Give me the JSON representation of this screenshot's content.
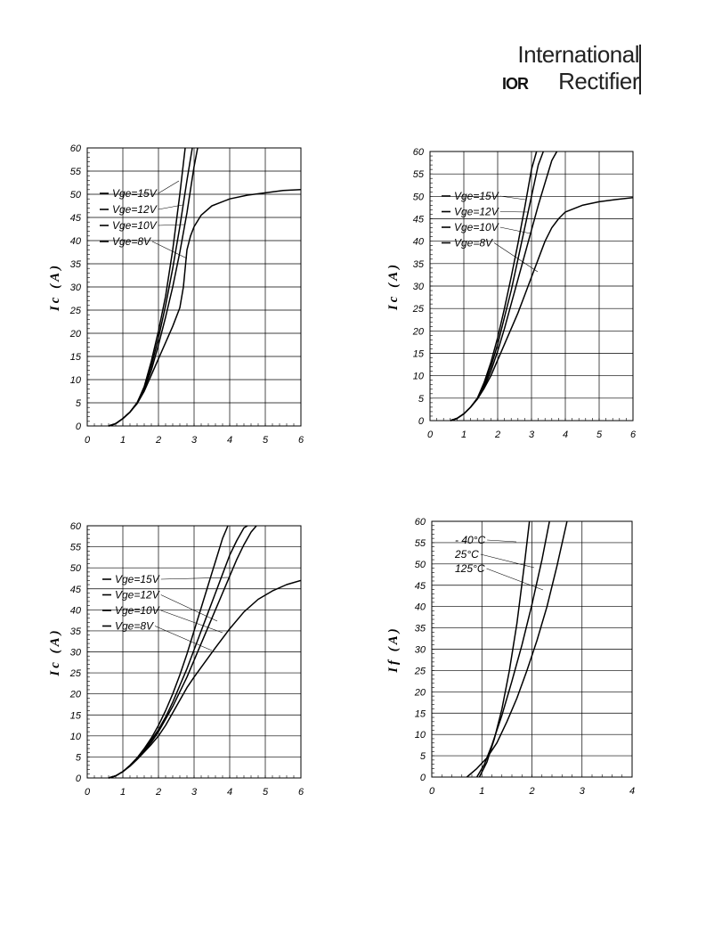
{
  "logo": {
    "line1": "International",
    "brand_mark": "IOR",
    "line2": "Rectifier"
  },
  "chart_data": [
    {
      "type": "line",
      "id": "c1",
      "xlabel": "",
      "ylabel": "Ic (A)",
      "xlim": [
        0,
        6
      ],
      "ylim": [
        0,
        60
      ],
      "xticks": [
        "0",
        "1",
        "2",
        "3",
        "4",
        "5",
        "6"
      ],
      "yticks": [
        "0",
        "5",
        "10",
        "15",
        "20",
        "25",
        "30",
        "35",
        "40",
        "45",
        "50",
        "55",
        "60"
      ],
      "grid": true,
      "legend": [
        "Vge=15V",
        "Vge=12V",
        "Vge=10V",
        "Vge=8V"
      ],
      "legend_font": 14,
      "series": [
        {
          "name": "Vge=15V",
          "x": [
            0.6,
            0.8,
            1.0,
            1.2,
            1.4,
            1.6,
            1.8,
            2.0,
            2.2,
            2.4,
            2.6,
            2.75
          ],
          "y": [
            0,
            0.5,
            1.6,
            3.0,
            5.0,
            8.5,
            14,
            20.5,
            28,
            38,
            50,
            60
          ]
        },
        {
          "name": "Vge=12V",
          "x": [
            0.6,
            0.8,
            1.0,
            1.2,
            1.4,
            1.6,
            1.8,
            2.0,
            2.2,
            2.4,
            2.6,
            2.8,
            2.95
          ],
          "y": [
            0,
            0.5,
            1.6,
            3.0,
            5.0,
            8.2,
            13,
            19,
            26,
            34,
            43,
            53,
            60
          ]
        },
        {
          "name": "Vge=10V",
          "x": [
            0.6,
            0.8,
            1.0,
            1.2,
            1.4,
            1.6,
            1.8,
            2.0,
            2.2,
            2.4,
            2.6,
            2.8,
            3.0,
            3.1
          ],
          "y": [
            0,
            0.5,
            1.6,
            3.0,
            5.0,
            8.0,
            12,
            17.5,
            23.5,
            30,
            37.5,
            46,
            56,
            60
          ]
        },
        {
          "name": "Vge=8V",
          "x": [
            0.6,
            0.8,
            1.0,
            1.2,
            1.4,
            1.6,
            1.8,
            2.0,
            2.2,
            2.4,
            2.6,
            2.7,
            2.75,
            2.8,
            2.9,
            3.0,
            3.2,
            3.5,
            4.0,
            4.5,
            5.0,
            5.5,
            6.0
          ],
          "y": [
            0,
            0.5,
            1.6,
            3.0,
            4.8,
            7.5,
            11,
            14.5,
            18,
            21.5,
            25.5,
            30,
            34,
            38,
            41,
            43,
            45.5,
            47.5,
            49,
            49.8,
            50.3,
            50.8,
            51
          ]
        }
      ]
    },
    {
      "type": "line",
      "id": "c2",
      "xlabel": "",
      "ylabel": "Ic (A)",
      "xlim": [
        0,
        6
      ],
      "ylim": [
        0,
        60
      ],
      "xticks": [
        "0",
        "1",
        "2",
        "3",
        "4",
        "5",
        "6"
      ],
      "yticks": [
        "0",
        "5",
        "10",
        "15",
        "20",
        "25",
        "30",
        "35",
        "40",
        "45",
        "50",
        "55",
        "60"
      ],
      "grid": true,
      "legend": [
        "Vge=15V",
        "Vge=12V",
        "Vge=10V",
        "Vge=8V"
      ],
      "legend_font": 12,
      "series": [
        {
          "name": "Vge=15V",
          "x": [
            0.6,
            0.8,
            1.0,
            1.2,
            1.4,
            1.6,
            1.8,
            2.0,
            2.2,
            2.4,
            2.6,
            2.8,
            3.0,
            3.15
          ],
          "y": [
            0,
            0.5,
            1.5,
            3.0,
            5.0,
            8.5,
            13,
            18.5,
            25,
            32,
            39.5,
            47.5,
            56,
            60
          ]
        },
        {
          "name": "Vge=12V",
          "x": [
            0.6,
            0.8,
            1.0,
            1.2,
            1.4,
            1.6,
            1.8,
            2.0,
            2.2,
            2.4,
            2.6,
            2.8,
            3.0,
            3.2,
            3.35
          ],
          "y": [
            0,
            0.5,
            1.5,
            3.0,
            5.0,
            8.0,
            12,
            17,
            23,
            29,
            36,
            43,
            50,
            57,
            60
          ]
        },
        {
          "name": "Vge=10V",
          "x": [
            0.6,
            0.8,
            1.0,
            1.2,
            1.4,
            1.6,
            1.8,
            2.0,
            2.2,
            2.4,
            2.6,
            2.8,
            3.0,
            3.2,
            3.4,
            3.6,
            3.75
          ],
          "y": [
            0,
            0.5,
            1.5,
            3.0,
            4.8,
            7.5,
            11,
            15.5,
            20.5,
            26,
            31.5,
            37,
            42.5,
            48,
            53,
            58,
            60
          ]
        },
        {
          "name": "Vge=8V",
          "x": [
            0.6,
            0.8,
            1.0,
            1.2,
            1.4,
            1.6,
            1.8,
            2.0,
            2.2,
            2.4,
            2.6,
            2.8,
            3.0,
            3.2,
            3.4,
            3.6,
            3.8,
            4.0,
            4.5,
            5.0,
            5.5,
            6.0
          ],
          "y": [
            0,
            0.5,
            1.5,
            3.0,
            4.8,
            7.2,
            10,
            13.5,
            17,
            20.5,
            24,
            28,
            32,
            36,
            40,
            43,
            45,
            46.5,
            48,
            48.8,
            49.3,
            49.7
          ]
        }
      ]
    },
    {
      "type": "line",
      "id": "c3",
      "xlabel": "",
      "ylabel": "Ic (A)",
      "xlim": [
        0,
        6
      ],
      "ylim": [
        0,
        60
      ],
      "xticks": [
        "0",
        "1",
        "2",
        "3",
        "4",
        "5",
        "6"
      ],
      "yticks": [
        "0",
        "5",
        "10",
        "15",
        "20",
        "25",
        "30",
        "35",
        "40",
        "45",
        "50",
        "55",
        "60"
      ],
      "grid": true,
      "legend": [
        "Vge=15V",
        "Vge=12V",
        "Vge=10V",
        "Vge=8V"
      ],
      "legend_font": 12,
      "series": [
        {
          "name": "Vge=15V",
          "x": [
            0.6,
            0.8,
            1.0,
            1.2,
            1.4,
            1.6,
            1.8,
            2.0,
            2.2,
            2.4,
            2.6,
            2.8,
            3.0,
            3.2,
            3.4,
            3.6,
            3.8,
            3.95
          ],
          "y": [
            0,
            0.5,
            1.5,
            3.0,
            4.8,
            7.0,
            9.5,
            12.5,
            16,
            20,
            24.5,
            29.5,
            35,
            40.5,
            46,
            51.5,
            57,
            60
          ]
        },
        {
          "name": "Vge=12V",
          "x": [
            0.6,
            0.8,
            1.0,
            1.2,
            1.4,
            1.6,
            1.8,
            2.0,
            2.2,
            2.4,
            2.6,
            2.8,
            3.0,
            3.2,
            3.4,
            3.6,
            3.8,
            4.0,
            4.2,
            4.4,
            4.5
          ],
          "y": [
            0,
            0.5,
            1.5,
            3.0,
            4.7,
            6.8,
            9.0,
            11.5,
            14.5,
            18,
            22,
            26,
            30.5,
            35,
            39.5,
            44,
            48.5,
            53,
            56.5,
            59.5,
            60
          ]
        },
        {
          "name": "Vge=10V",
          "x": [
            0.6,
            0.8,
            1.0,
            1.2,
            1.4,
            1.6,
            1.8,
            2.0,
            2.2,
            2.4,
            2.6,
            2.8,
            3.0,
            3.2,
            3.4,
            3.6,
            3.8,
            4.0,
            4.2,
            4.4,
            4.6,
            4.75
          ],
          "y": [
            0,
            0.5,
            1.5,
            3.0,
            4.6,
            6.5,
            8.5,
            11,
            14,
            17,
            20.5,
            24,
            28,
            32,
            36,
            40,
            44,
            48,
            52,
            55.5,
            58.5,
            60
          ]
        },
        {
          "name": "Vge=8V",
          "x": [
            0.6,
            0.8,
            1.0,
            1.2,
            1.4,
            1.6,
            1.8,
            2.0,
            2.2,
            2.4,
            2.6,
            2.8,
            3.0,
            3.3,
            3.6,
            4.0,
            4.4,
            4.8,
            5.2,
            5.6,
            6.0
          ],
          "y": [
            0,
            0.5,
            1.5,
            2.8,
            4.4,
            6.2,
            8.0,
            10,
            12.5,
            15.5,
            18.5,
            21.5,
            24,
            27.5,
            31,
            35.5,
            39.5,
            42.5,
            44.5,
            46,
            47
          ]
        }
      ]
    },
    {
      "type": "line",
      "id": "c4",
      "xlabel": "",
      "ylabel": "If (A)",
      "xlim": [
        0,
        4
      ],
      "ylim": [
        0,
        60
      ],
      "xticks": [
        "0",
        "1",
        "2",
        "3",
        "4"
      ],
      "yticks": [
        "0",
        "5",
        "10",
        "15",
        "20",
        "25",
        "30",
        "35",
        "40",
        "45",
        "50",
        "55",
        "60"
      ],
      "grid": true,
      "legend": [
        "- 40°C",
        "25°C",
        "125°C"
      ],
      "legend_font": 12,
      "series": [
        {
          "name": "- 40°C",
          "x": [
            0.95,
            1.1,
            1.25,
            1.4,
            1.55,
            1.7,
            1.85,
            1.95
          ],
          "y": [
            0,
            3.5,
            9,
            16,
            25,
            36,
            50,
            60
          ]
        },
        {
          "name": "25°C",
          "x": [
            0.9,
            1.05,
            1.2,
            1.4,
            1.6,
            1.8,
            2.0,
            2.2,
            2.35
          ],
          "y": [
            0,
            3,
            7.5,
            14.5,
            22.5,
            31,
            40.5,
            51,
            60
          ]
        },
        {
          "name": "125°C",
          "x": [
            0.7,
            0.9,
            1.1,
            1.3,
            1.5,
            1.7,
            1.9,
            2.1,
            2.3,
            2.5,
            2.7
          ],
          "y": [
            0,
            2,
            4.5,
            8,
            13,
            18.5,
            25,
            32,
            40,
            49.5,
            60
          ]
        }
      ]
    }
  ]
}
